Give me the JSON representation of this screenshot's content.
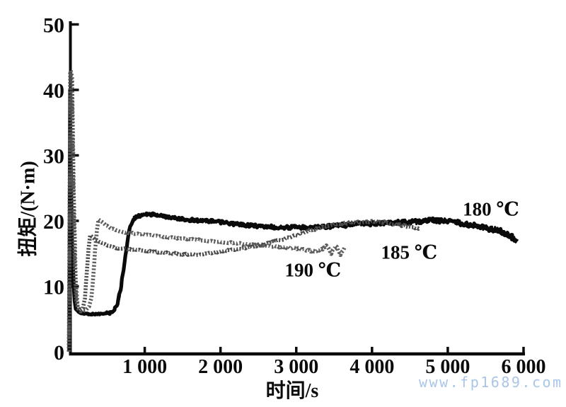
{
  "watermark": {
    "text": "www.fp1689.com"
  },
  "colors": {
    "axis": "#0a0a0a",
    "text": "#0a0a0a",
    "curve_solid": "#0a0a0a",
    "stipple_dense": "#4d4d4d",
    "stipple_light": "#5e5e5e",
    "watermark": "#a9c6e8",
    "background": "#ffffff"
  },
  "chart_data": {
    "type": "line",
    "title": "",
    "xlabel": "时间/s",
    "ylabel": "扭矩/(N·m)",
    "xlim": [
      0,
      6000
    ],
    "ylim": [
      0,
      50
    ],
    "grid": false,
    "legend": "inline-annotations",
    "x_ticks": [
      {
        "v": 1000,
        "label": "1 000"
      },
      {
        "v": 2000,
        "label": "2 000"
      },
      {
        "v": 3000,
        "label": "3 000"
      },
      {
        "v": 4000,
        "label": "4 000"
      },
      {
        "v": 5000,
        "label": "5 000"
      },
      {
        "v": 6000,
        "label": "6 000"
      }
    ],
    "y_ticks": [
      {
        "v": 0,
        "label": "0"
      },
      {
        "v": 10,
        "label": "10"
      },
      {
        "v": 20,
        "label": "20"
      },
      {
        "v": 30,
        "label": "30"
      },
      {
        "v": 40,
        "label": "40"
      },
      {
        "v": 50,
        "label": "50"
      }
    ],
    "series": [
      {
        "name": "180 ℃",
        "style": "solid-noisy",
        "label": {
          "t": 5570,
          "v": 21.8
        },
        "points": [
          [
            0,
            0
          ],
          [
            12,
            40
          ],
          [
            25,
            30
          ],
          [
            45,
            16
          ],
          [
            65,
            9
          ],
          [
            90,
            6.6
          ],
          [
            140,
            5.9
          ],
          [
            300,
            5.75
          ],
          [
            460,
            5.8
          ],
          [
            560,
            6.0
          ],
          [
            610,
            6.6
          ],
          [
            650,
            7.8
          ],
          [
            690,
            10.2
          ],
          [
            730,
            13.6
          ],
          [
            770,
            16.8
          ],
          [
            810,
            19.2
          ],
          [
            860,
            20.4
          ],
          [
            950,
            20.9
          ],
          [
            1100,
            21.0
          ],
          [
            1250,
            20.7
          ],
          [
            1400,
            20.4
          ],
          [
            1600,
            20.15
          ],
          [
            1800,
            20.0
          ],
          [
            2000,
            19.8
          ],
          [
            2200,
            19.5
          ],
          [
            2400,
            19.3
          ],
          [
            2600,
            19.1
          ],
          [
            2800,
            19.0
          ],
          [
            3000,
            19.0
          ],
          [
            3200,
            19.05
          ],
          [
            3400,
            19.15
          ],
          [
            3600,
            19.3
          ],
          [
            3800,
            19.5
          ],
          [
            4000,
            19.6
          ],
          [
            4200,
            19.7
          ],
          [
            4400,
            19.8
          ],
          [
            4600,
            19.9
          ],
          [
            4800,
            20.1
          ],
          [
            4950,
            20.0
          ],
          [
            5100,
            19.8
          ],
          [
            5250,
            19.5
          ],
          [
            5400,
            19.2
          ],
          [
            5550,
            18.8
          ],
          [
            5700,
            18.4
          ],
          [
            5800,
            17.9
          ],
          [
            5870,
            17.4
          ],
          [
            5910,
            16.9
          ]
        ]
      },
      {
        "name": "185 ℃",
        "style": "stipple-dense",
        "label": {
          "t": 4490,
          "v": 15.2
        },
        "points": [
          [
            0,
            0
          ],
          [
            18,
            42.5
          ],
          [
            35,
            41
          ],
          [
            55,
            26
          ],
          [
            75,
            13
          ],
          [
            95,
            8
          ],
          [
            120,
            6.6
          ],
          [
            155,
            6.3
          ],
          [
            185,
            6.7
          ],
          [
            210,
            8.2
          ],
          [
            235,
            12.2
          ],
          [
            258,
            15.8
          ],
          [
            278,
            17.8
          ],
          [
            300,
            17.6
          ],
          [
            350,
            17.1
          ],
          [
            420,
            16.7
          ],
          [
            500,
            16.3
          ],
          [
            600,
            15.9
          ],
          [
            750,
            15.7
          ],
          [
            900,
            15.6
          ],
          [
            1100,
            15.3
          ],
          [
            1300,
            15.1
          ],
          [
            1500,
            14.9
          ],
          [
            1700,
            14.8
          ],
          [
            1900,
            15.1
          ],
          [
            2100,
            15.5
          ],
          [
            2400,
            16.0
          ],
          [
            2600,
            16.5
          ],
          [
            2800,
            17.1
          ],
          [
            3000,
            17.8
          ],
          [
            3200,
            18.6
          ],
          [
            3400,
            19.2
          ],
          [
            3600,
            19.6
          ],
          [
            3800,
            19.8
          ],
          [
            4000,
            19.9
          ],
          [
            4150,
            19.8
          ],
          [
            4300,
            19.5
          ],
          [
            4450,
            19.2
          ],
          [
            4627,
            18.8
          ]
        ]
      },
      {
        "name": "190 ℃",
        "style": "stipple-light",
        "label": {
          "t": 3220,
          "v": 12.5
        },
        "points": [
          [
            0,
            0
          ],
          [
            22,
            43
          ],
          [
            42,
            42
          ],
          [
            65,
            24
          ],
          [
            88,
            11
          ],
          [
            115,
            7
          ],
          [
            155,
            6.2
          ],
          [
            215,
            6.3
          ],
          [
            265,
            6.9
          ],
          [
            295,
            8.2
          ],
          [
            320,
            11.5
          ],
          [
            345,
            15.5
          ],
          [
            368,
            18.6
          ],
          [
            388,
            20.2
          ],
          [
            420,
            20.0
          ],
          [
            480,
            19.4
          ],
          [
            560,
            18.8
          ],
          [
            660,
            18.4
          ],
          [
            780,
            18.15
          ],
          [
            950,
            18.0
          ],
          [
            1100,
            17.8
          ],
          [
            1300,
            17.5
          ],
          [
            1500,
            17.3
          ],
          [
            1700,
            17.1
          ],
          [
            1900,
            16.9
          ],
          [
            2100,
            16.7
          ],
          [
            2300,
            16.5
          ],
          [
            2500,
            16.3
          ],
          [
            2700,
            16.1
          ],
          [
            2900,
            15.9
          ],
          [
            3050,
            15.7
          ],
          [
            3200,
            15.4
          ],
          [
            3320,
            15.5
          ],
          [
            3400,
            16.2
          ],
          [
            3460,
            15.0
          ],
          [
            3520,
            16.2
          ],
          [
            3580,
            14.9
          ],
          [
            3637,
            15.8
          ]
        ]
      }
    ]
  }
}
